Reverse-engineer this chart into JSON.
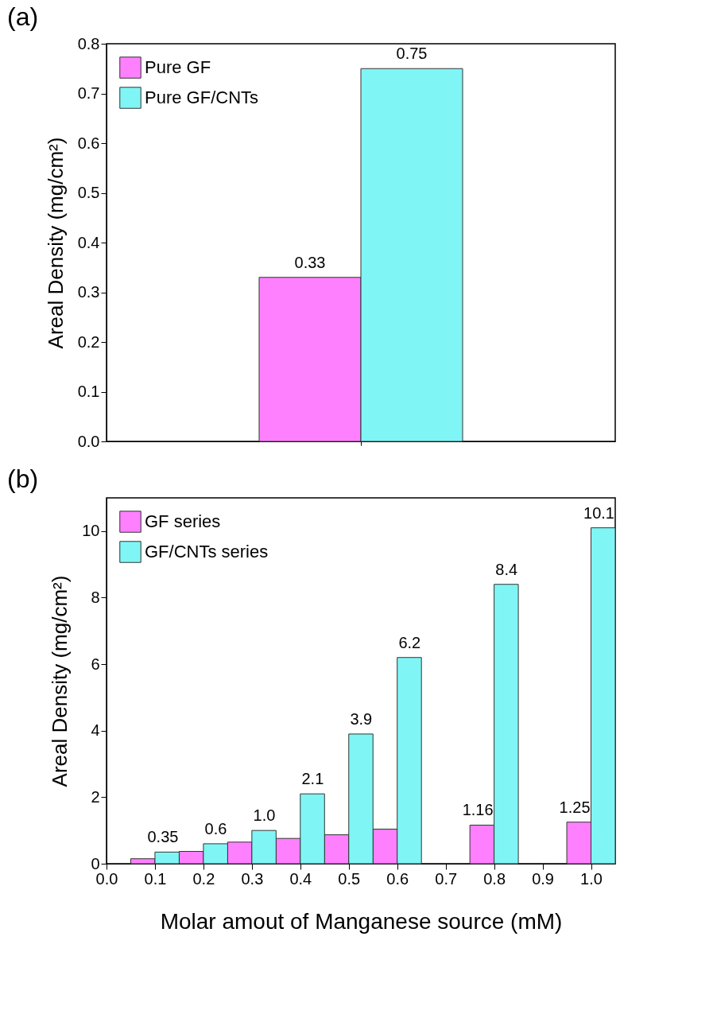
{
  "chart_data": [
    {
      "type": "bar",
      "title": "(a)",
      "ylabel": "Areal Density (mg/cm²)",
      "categories": [
        null
      ],
      "series": [
        {
          "name": "Pure GF",
          "color": "#ff80ff",
          "values": [
            0.33
          ]
        },
        {
          "name": "Pure GF/CNTs",
          "color": "#80f5f5",
          "values": [
            0.75
          ]
        }
      ],
      "ylim": [
        0,
        0.8
      ],
      "yticks": [
        {
          "value": 0,
          "label": "0.0"
        },
        0.1,
        0.2,
        0.3,
        0.4,
        0.5,
        0.6,
        0.7,
        0.8
      ],
      "grid": false,
      "legend": "top left",
      "data_labels": true,
      "tick_labels": "y"
    },
    {
      "type": "bar",
      "title": "(b)",
      "ylabel": "Areal Density (mg/cm²)",
      "xlabel": "Molar amout of Manganese source (mM)",
      "x": [
        0.1,
        0.2,
        0.3,
        0.4,
        0.5,
        0.6,
        0.8,
        1.0
      ],
      "series": [
        {
          "name": "GF series",
          "color": "#ff80ff",
          "values": [
            0.15,
            0.37,
            0.65,
            0.76,
            0.87,
            1.04,
            1.16,
            1.25
          ],
          "value_labels": [
            null,
            null,
            null,
            null,
            null,
            null,
            "1.16",
            "1.25"
          ]
        },
        {
          "name": "GF/CNTs series",
          "color": "#80f5f5",
          "values": [
            0.35,
            0.6,
            1.0,
            2.1,
            3.9,
            6.2,
            8.4,
            10.1
          ],
          "value_labels": [
            "0.35",
            "0.6",
            "1.0",
            "2.1",
            "3.9",
            "6.2",
            "8.4",
            "10.1"
          ]
        }
      ],
      "xlim": [
        0,
        1.05
      ],
      "xticks": [
        {
          "value": 0,
          "label": "0.0"
        },
        0.1,
        0.2,
        0.3,
        0.4,
        0.5,
        0.6,
        0.7,
        0.8,
        0.9,
        {
          "value": 1,
          "label": "1.0"
        }
      ],
      "ylim": [
        0,
        11
      ],
      "yticks": [
        0,
        2,
        4,
        6,
        8,
        10
      ],
      "grid": false,
      "legend": "top left"
    }
  ]
}
